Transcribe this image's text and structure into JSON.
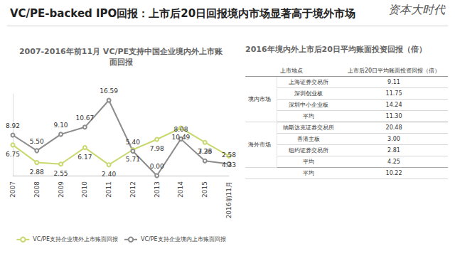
{
  "header": {
    "title": "VC/PE-backed IPO回报：上市后20日回报境内市场显著高于境外市场",
    "logo": "资本大时代"
  },
  "chart_data": {
    "type": "line",
    "title": "2007-2016年前11月 VC/PE支持中国企业境内外上市账面回报",
    "categories": [
      "2007",
      "2008",
      "2009",
      "2010",
      "2011",
      "2012",
      "2013",
      "2014",
      "2015",
      "2016前11月"
    ],
    "series": [
      {
        "name": "VC/PE支持企业境外上市账面回报",
        "color": "#c9d86f",
        "marker": "circle",
        "line_style": "solid",
        "values": [
          6.75,
          2.88,
          2.55,
          6.17,
          2.4,
          5.71,
          7.98,
          10.49,
          7.33,
          4.33
        ],
        "value_labels": [
          "6.75",
          "2.88",
          "2.55",
          "6.17",
          "2.40",
          "5.71",
          "7.98",
          "10.49",
          "7.33",
          "4.33"
        ]
      },
      {
        "name": "VC/PE支持企业境内上市账面回报",
        "color": "#8c8c8c",
        "marker": "circle",
        "line_style": "solid",
        "values": [
          8.92,
          5.5,
          9.1,
          10.67,
          16.59,
          5.4,
          0.0,
          8.08,
          3.26,
          2.58
        ],
        "value_labels": [
          "8.92",
          "5.50",
          "9.10",
          "10.67",
          "16.59",
          "5.40",
          "0.00",
          "8.08",
          "3.26",
          "2.58"
        ]
      }
    ],
    "ylim": [
      0,
      18
    ],
    "grid": false,
    "tick_labels": "x",
    "data_labels": true,
    "legend": "bottom"
  },
  "table": {
    "title": "2016年境内外上市后20日平均账面投资回报（倍）",
    "columns": [
      "上市地点",
      "上市后20日平均账面投资回报（倍）"
    ],
    "groups": [
      {
        "name": "境内市场",
        "rows": [
          [
            "上海证券交易所",
            "9.11"
          ],
          [
            "深圳创业板",
            "11.75"
          ],
          [
            "深圳中小企业板",
            "14.24"
          ],
          [
            "平均",
            "11.30"
          ]
        ]
      },
      {
        "name": "海外市场",
        "rows": [
          [
            "纳斯达克证券交易所",
            "20.48"
          ],
          [
            "香港主板",
            "3.00"
          ],
          [
            "纽约证券交易所",
            "2.81"
          ],
          [
            "平均",
            "4.25"
          ]
        ]
      }
    ],
    "total": [
      "平均",
      "10.22"
    ]
  }
}
